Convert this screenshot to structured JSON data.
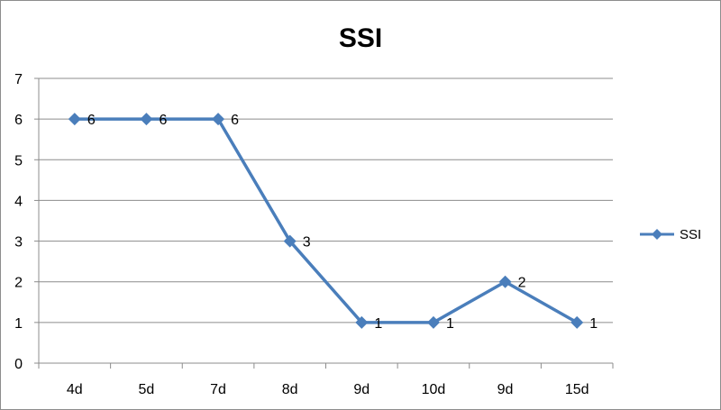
{
  "chart_data": {
    "type": "line",
    "title": "SSI",
    "xlabel": "",
    "ylabel": "",
    "categories": [
      "4d",
      "5d",
      "7d",
      "8d",
      "9d",
      "10d",
      "9d",
      "15d"
    ],
    "series": [
      {
        "name": "SSI",
        "values": [
          6,
          6,
          6,
          3,
          1,
          1,
          2,
          1
        ]
      }
    ],
    "ylim": [
      0,
      7
    ],
    "yticks": [
      0,
      1,
      2,
      3,
      4,
      5,
      6,
      7
    ],
    "grid": true,
    "data_labels": true,
    "legend_position": "right",
    "colors": {
      "series": "#4a7ebb",
      "grid": "#8c8c8c",
      "axis": "#8c8c8c"
    }
  }
}
